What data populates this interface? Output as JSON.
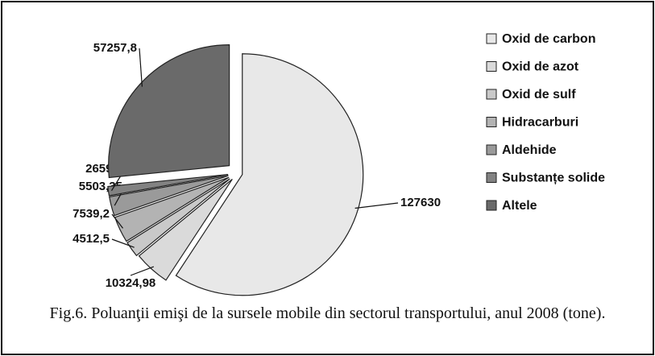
{
  "chart_data": {
    "type": "pie",
    "caption": "Fig.6. Poluanţii emişi de la sursele mobile din sectorul transportului, anul 2008 (tone).",
    "categories": [
      "Oxid de carbon",
      "Oxid de azot",
      "Oxid de sulf",
      "Hidracarburi",
      "Aldehide",
      "Substanțe solide",
      "Altele"
    ],
    "values": [
      127630,
      10324.98,
      4512.5,
      7539.2,
      5503.35,
      2659.1,
      57257.8
    ],
    "value_labels": [
      "127630",
      "10324,98",
      "4512,5",
      "7539,2",
      "5503,35",
      "2659,1",
      "57257,8"
    ],
    "colors": [
      "#e8e8e8",
      "#dadada",
      "#c9c9c9",
      "#b3b3b3",
      "#9a9a9a",
      "#828282",
      "#6a6a6a"
    ],
    "legend": "right"
  }
}
